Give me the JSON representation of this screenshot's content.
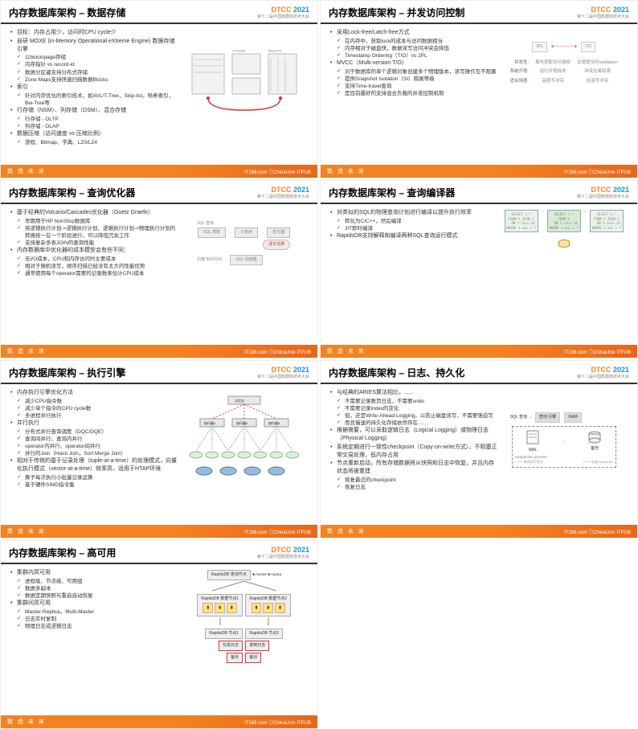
{
  "logo": {
    "d": "DTCC",
    "yr": "2021",
    "sub": "第十二届中国数据库技术大会"
  },
  "footer": {
    "cn": "数 造 未 来",
    "brands": "IT168.com ⓘChinaUnix ITPUB"
  },
  "slides": {
    "s1": {
      "title": "内存数据库架构 – 数据存储",
      "items": [
        {
          "l": 1,
          "t": "目标：内存占用少，访问时CPU cycle少"
        },
        {
          "l": 1,
          "t": "自研 MOXE (in-Memory Operational eXtreme Engine) 数据存储引擎"
        },
        {
          "l": 2,
          "t": "以block/page存储"
        },
        {
          "l": 2,
          "t": "内存指针 vs record-id"
        },
        {
          "l": 2,
          "t": "数据分区键支持分布式存储"
        },
        {
          "l": 2,
          "t": "Zone Maps支持快速扫描数据Blocks"
        },
        {
          "l": 1,
          "t": "索引"
        },
        {
          "l": 2,
          "t": "针对内存优化的索引技术，如AVL/T-Tree，Skip-list，哈希索引，Bw-Tree等"
        },
        {
          "l": 1,
          "t": "行存储（NSM）、列存储（DSM）、混合存储"
        },
        {
          "l": 2,
          "t": "行存储 - OLTP"
        },
        {
          "l": 2,
          "t": "列存储 - OLAP"
        },
        {
          "l": 1,
          "t": "数据压缩（访问速度 vs 压缩比例）"
        },
        {
          "l": 2,
          "t": "游程、Bitmap、字典、LZ0/LZ4"
        }
      ]
    },
    "s2": {
      "title": "内存数据库架构 – 并发访问控制",
      "items": [
        {
          "l": 1,
          "t": "采用Lock-free/Latch-free方式"
        },
        {
          "l": 2,
          "t": "在内存中，获取lock的成本与访问数据相当"
        },
        {
          "l": 2,
          "t": "内存相对于磁盘快，数据读写访问冲突会降低"
        },
        {
          "l": 2,
          "t": "Timestamp Ordering（T/O）vs 2PL"
        },
        {
          "l": 1,
          "t": "MVCC（Multi-version T/O）"
        },
        {
          "l": 2,
          "t": "对于数据库的单个逻辑对象创建多个物理版本，读写操作互不阻塞"
        },
        {
          "l": 2,
          "t": "提供Snapshot Isolation（SI）隔离等级"
        },
        {
          "l": 2,
          "t": "支持Time-travel查询"
        },
        {
          "l": 2,
          "t": "是目前最好的支持混合负载的并发控制机制"
        }
      ],
      "diag": {
        "n2pl": "2PL",
        "nto": "T/O",
        "rows": [
          {
            "k": "并发性:",
            "a": "事先获取访问授权",
            "b": "交易提交时validation"
          },
          {
            "k": "系统开销:",
            "a": "运行开销成本",
            "b": "冲突交易回滚"
          },
          {
            "k": "适合场景:",
            "a": "高度写冲突",
            "b": "低读写冲突"
          }
        ]
      }
    },
    "s3": {
      "title": "内存数据库架构 – 查询优化器",
      "items": [
        {
          "l": 1,
          "t": "基于经典的Volcano/Cascades优化器（Goetz Graefe）"
        },
        {
          "l": 2,
          "t": "早期用于HP NonStop数据库"
        },
        {
          "l": 2,
          "t": "将逻辑执行计划->逻辑执行计划、逻辑执行计划->物理执行计划的转换统一在一个阶段进行，可以降低冗余工作"
        },
        {
          "l": 2,
          "t": "支持复杂多表JOIN的查询性能"
        },
        {
          "l": 1,
          "t": "内存数据库中优化器的成本模型会有些不同："
        },
        {
          "l": 2,
          "t": "无I/O成本，CPU和内存访问时主要成本"
        },
        {
          "l": 2,
          "t": "相对于随机读写，顺序扫描已经没有太大的性能优势"
        },
        {
          "l": 2,
          "t": "通常使用每个operator需要的记录数来估计CPU成本"
        }
      ],
      "diag": {
        "in": "SQL 查询",
        "p1": "SQL 算数",
        "p2": "计划树",
        "p3": "优化器",
        "p4": "SQL 调度器",
        "note": "成本估算",
        "buf": "扫描 BUFFER"
      }
    },
    "s4": {
      "title": "内存数据库架构 – 查询编译器",
      "items": [
        {
          "l": 1,
          "t": "对类似的SQL的物理查询计划进行编译以提升执行效率"
        },
        {
          "l": 2,
          "t": "转化为C/C++，然后编译"
        },
        {
          "l": 2,
          "t": "JIT即时编译"
        },
        {
          "l": 1,
          "t": "RapidsDB支持解释和编译两种SQL查询运行模式"
        }
      ],
      "diag": {
        "q1": "SELECT c.*\nFROM t JOIN s\n  ON t.id=s.id\nWHERE t.val > ?",
        "q2": "SELECT c.*\nFROM t\n  ON t.id=s.id\nWHERE t.val = ?",
        "q3": "SELECT c.*\nFROM t JOIN s\n  ON t.id=s.id\nWHERE t.val > ?"
      }
    },
    "s5": {
      "title": "内存数据库架构 – 执行引擎",
      "items": [
        {
          "l": 1,
          "t": "内存执行引擎优化方法"
        },
        {
          "l": 2,
          "t": "减少CPU指令数"
        },
        {
          "l": 2,
          "t": "减少单个指令的CPU cycle数"
        },
        {
          "l": 2,
          "t": "多进程并行执行"
        },
        {
          "l": 1,
          "t": "并行执行"
        },
        {
          "l": 2,
          "t": "分布式并行查询调度（DQC/DQE）"
        },
        {
          "l": 2,
          "t": "查询间并行、查询内并行"
        },
        {
          "l": 2,
          "t": "operator内并行、operator间并行"
        },
        {
          "l": 2,
          "t": "并行的Join（Hash Join，Sort Merge Join）"
        },
        {
          "l": 1,
          "t": "相对于传统的基于记录处理（tuple-at-a-time）的处理模式，向量化执行模式（vector-at-a-time）效率高，适用于HTAP环境"
        },
        {
          "l": 2,
          "t": "算子每次执行小批量记录运算"
        },
        {
          "l": 2,
          "t": "基于硬件SIMD指令集"
        }
      ]
    },
    "s6": {
      "title": "内存数据库架构 – 日志、持久化",
      "items": [
        {
          "l": 1,
          "t": "与经典的ARIES算法相比，......"
        },
        {
          "l": 2,
          "t": "不需要记录数页日志，不需要undo"
        },
        {
          "l": 2,
          "t": "不需要记录index的变化"
        },
        {
          "l": 2,
          "t": "但，还是Write-Ahead-Logging，以防止磁盘读写，不需要强迫写"
        },
        {
          "l": 2,
          "t": "而且慢速的持久化存储依然存在……"
        },
        {
          "l": 1,
          "t": "根据需要，可以采取逻辑日志（Logical Logging）或物理日志（Physical Logging）"
        },
        {
          "l": 1,
          "t": "系统定期进行一致性checkpoint（Copy-on-write方式），不阻塞正常交易处理，低内存占用"
        },
        {
          "l": 1,
          "t": "节点重新启动，所有存储数据将从快照和日志中恢复，并且内存状态将被重建"
        },
        {
          "l": 2,
          "t": "恢复最近的checkpoint"
        },
        {
          "l": 2,
          "t": "恢复日志"
        }
      ],
      "diag": {
        "sql": "SQL 查询",
        "eng": "查询 引擎",
        "ram": "RAM",
        "wal": "WAL",
        "ck": "备份",
        "cp": "compaction process",
        "n1": "事务即可提交",
        "n2": "形成checkpoint"
      }
    },
    "s7": {
      "title": "内存数据库架构 – 高可用",
      "items": [
        {
          "l": 1,
          "t": "集群内高可用"
        },
        {
          "l": 2,
          "t": "进程级、节点级、可用组"
        },
        {
          "l": 2,
          "t": "数据多副本"
        },
        {
          "l": 2,
          "t": "数据定期快照与重启自动恢复"
        },
        {
          "l": 1,
          "t": "集群间高可用"
        },
        {
          "l": 2,
          "t": "Master-Replica，Multi-Master"
        },
        {
          "l": 2,
          "t": "日志实时复制"
        },
        {
          "l": 2,
          "t": "物理日志或逻辑日志"
        }
      ],
      "diag": {
        "top": "RapidsDB 查询节点",
        "m": "master",
        "r": "replica",
        "n1": "RapidsDB 数据节点1",
        "n2": "RapidsDB 数据节点2",
        "b1": "RapidsDB 节点1",
        "b2": "RapidsDB 节点2",
        "lb1": "交易日志",
        "lb2": "复制日志",
        "lb3": "备份",
        "lb4": "备份"
      }
    }
  }
}
